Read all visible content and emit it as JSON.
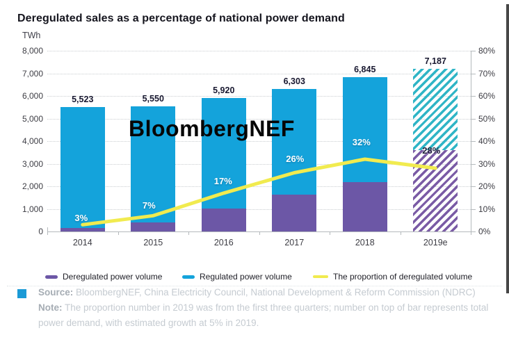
{
  "header": {
    "title": "Deregulated sales as a percentage of national power demand",
    "y_left_unit": "TWh"
  },
  "watermark": "BloombergNEF",
  "chart_data": {
    "type": "bar",
    "subtype": "stacked-bars-with-percentage-line",
    "title": "Deregulated sales as a percentage of national power demand",
    "grid": "dotted-horizontal",
    "legend_position": "bottom",
    "y_left": {
      "unit": "TWh",
      "min": 0,
      "max": 8000,
      "step": 1000,
      "tick_labels": [
        "8,000",
        "7,000",
        "6,000",
        "5,000",
        "4,000",
        "3,000",
        "2,000",
        "1,000",
        "0"
      ]
    },
    "y_right": {
      "unit": "%",
      "min": 0,
      "max": 80,
      "step": 10,
      "tick_labels": [
        "80%",
        "70%",
        "60%",
        "50%",
        "40%",
        "30%",
        "20%",
        "10%",
        "0%"
      ]
    },
    "categories": [
      "2014",
      "2015",
      "2016",
      "2017",
      "2018",
      "2019e"
    ],
    "totals": [
      5523,
      5550,
      5920,
      6303,
      6845,
      7187
    ],
    "total_labels": [
      "5,523",
      "5,550",
      "5,920",
      "6,303",
      "6,845",
      "7,187"
    ],
    "hatched_category": "2019e",
    "hatch_colors": {
      "regulated": "#2FB5C6",
      "deregulated": "#7A5BA5"
    },
    "series": [
      {
        "name": "Deregulated power volume",
        "type": "bar-segment",
        "color": "#6C57A6",
        "values": [
          166,
          389,
          1006,
          1639,
          2190,
          3600
        ]
      },
      {
        "name": "Regulated power volume",
        "type": "bar-segment",
        "color": "#14A3DB",
        "values": [
          5357,
          5161,
          4914,
          4664,
          4655,
          3587
        ]
      },
      {
        "name": "The proportion of deregulated volume",
        "type": "line",
        "color": "#F1EB4F",
        "axis": "right",
        "values": [
          3,
          7,
          17,
          26,
          32,
          28
        ],
        "point_labels": [
          "3%",
          "7%",
          "17%",
          "26%",
          "32%",
          "28%"
        ],
        "point_label_colors": [
          "#ffffff",
          "#ffffff",
          "#ffffff",
          "#ffffff",
          "#ffffff",
          "#1f1f3c"
        ]
      }
    ]
  },
  "legend": {
    "items": [
      {
        "label": "Deregulated power volume",
        "color": "#6C57A6",
        "shape": "bar-swatch"
      },
      {
        "label": "Regulated power volume",
        "color": "#14A3DB",
        "shape": "bar-swatch"
      },
      {
        "label": "The proportion of deregulated volume",
        "color": "#F1EB4F",
        "shape": "line-swatch"
      }
    ]
  },
  "footer": {
    "bullet_color": "#1B9AD6",
    "source_label": "Source:",
    "source_text": "BloombergNEF, China Electricity Council, National Development & Reform Commission (NDRC)",
    "note_label": "Note:",
    "note_text": "The proportion number in 2019 was from the first three quarters; number on top of bar represents total power demand, with estimated growth at 5% in 2019."
  }
}
